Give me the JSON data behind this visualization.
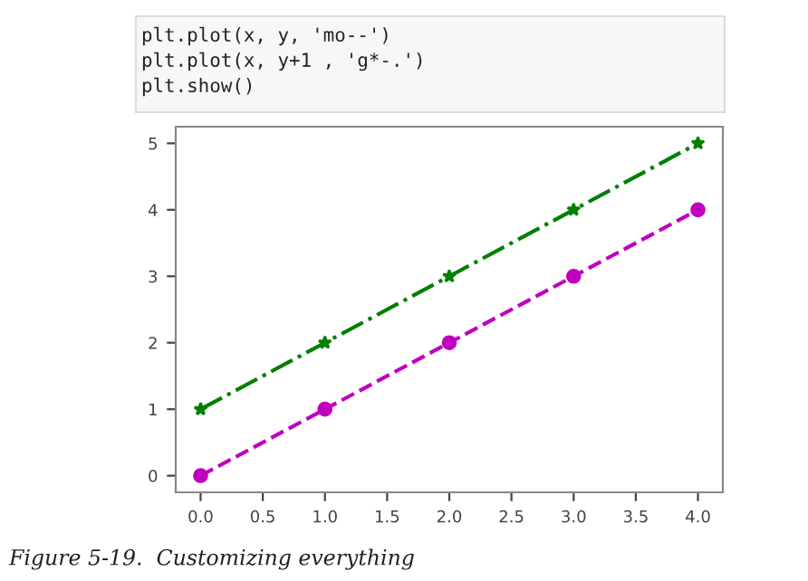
{
  "chart_data": {
    "type": "line",
    "x": [
      0,
      1,
      2,
      3,
      4
    ],
    "series": [
      {
        "color": "#bf00bf",
        "values": [
          0,
          1,
          2,
          3,
          4
        ],
        "marker": "circle",
        "line_style": "dashed"
      },
      {
        "color": "#008000",
        "values": [
          1,
          2,
          3,
          4,
          5
        ],
        "marker": "star",
        "line_style": "dashdot"
      }
    ],
    "xlim": [
      -0.2,
      4.2
    ],
    "ylim": [
      -0.25,
      5.25
    ],
    "xticks": [
      {
        "value": 0,
        "label": "0.0"
      },
      0.5,
      {
        "value": 1,
        "label": "1.0"
      },
      1.5,
      {
        "value": 2,
        "label": "2.0"
      },
      2.5,
      {
        "value": 3,
        "label": "3.0"
      },
      3.5,
      {
        "value": 4,
        "label": "4.0"
      }
    ],
    "yticks": [
      0,
      1,
      2,
      3,
      4,
      5
    ],
    "grid": false,
    "legend": false,
    "annotations": [
      "plt.plot(x, y, 'mo--')",
      "plt.plot(x, y+1 , 'g*-.')",
      "plt.show()",
      "Figure 5-19.  Customizing everything"
    ]
  }
}
